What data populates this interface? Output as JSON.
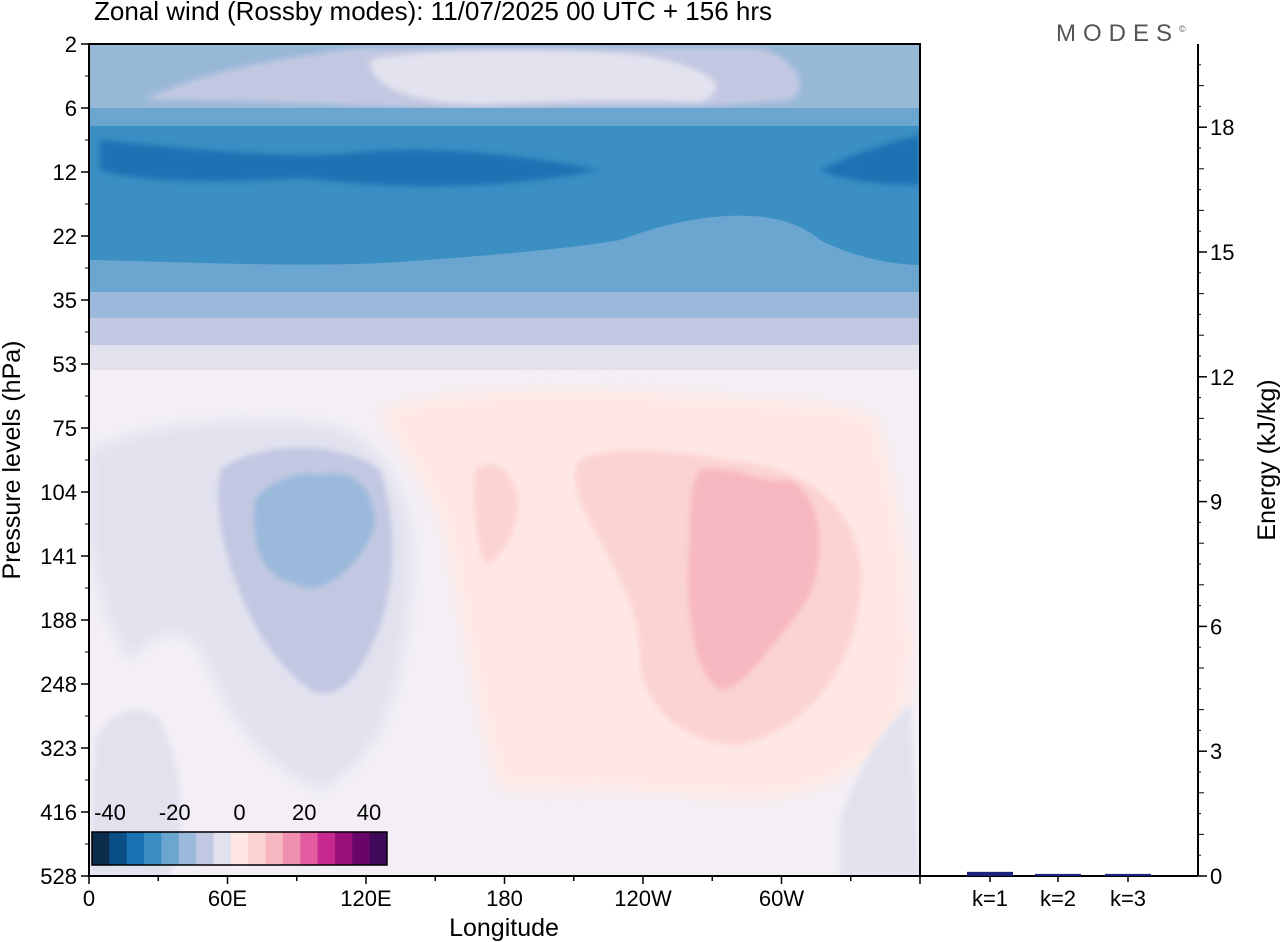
{
  "title": "Zonal wind (Rossby modes):  11/07/2025  00 UTC  + 156 hrs",
  "brand": "MODES",
  "brand_mark": "©",
  "chart_data": [
    {
      "type": "heatmap",
      "xlabel": "Longitude",
      "ylabel": "Pressure levels (hPa)",
      "x_ticks": [
        "0",
        "60E",
        "120E",
        "180",
        "120W",
        "60W"
      ],
      "x_tick_degrees": [
        0,
        60,
        120,
        180,
        240,
        300
      ],
      "xlim_degrees": [
        0,
        360
      ],
      "y_ticks": [
        "2",
        "6",
        "12",
        "22",
        "35",
        "53",
        "75",
        "104",
        "141",
        "188",
        "248",
        "323",
        "416",
        "528"
      ],
      "colorbar": {
        "tick_labels": [
          "-40",
          "-20",
          "0",
          "20",
          "40"
        ],
        "colors": [
          "#0b2c4a",
          "#0a4f86",
          "#1b72b3",
          "#3b8fc3",
          "#6aa6d0",
          "#9ab9db",
          "#c2c8e2",
          "#e2e2ef",
          "#ffe8e4",
          "#fbd3d3",
          "#f7b7c0",
          "#f08fb0",
          "#e25aa0",
          "#c8298f",
          "#991078",
          "#6a0568",
          "#3e0a5a"
        ]
      },
      "features": [
        {
          "description_level": "upper",
          "levels": "2-6",
          "sign": "negative",
          "max_abs": 5
        },
        {
          "description_level": "upper",
          "levels": "6-35",
          "sign": "negative",
          "max_abs": 25
        },
        {
          "description_level": "lower",
          "levels": "53-416",
          "longitudes": "0-120E",
          "sign": "negative",
          "max_abs": 10
        },
        {
          "description_level": "lower",
          "levels": "75-323",
          "longitudes": "150E-0",
          "sign": "positive",
          "max_abs": 10
        }
      ]
    },
    {
      "type": "bar",
      "ylabel": "Energy (kJ/kg)",
      "categories": [
        "k=1",
        "k=2",
        "k=3"
      ],
      "values": [
        0.1,
        0.05,
        0.05
      ],
      "ylim": [
        0,
        20
      ],
      "y_ticks": [
        0,
        3,
        6,
        9,
        12,
        15,
        18
      ],
      "bar_color": "#1a237e"
    }
  ]
}
